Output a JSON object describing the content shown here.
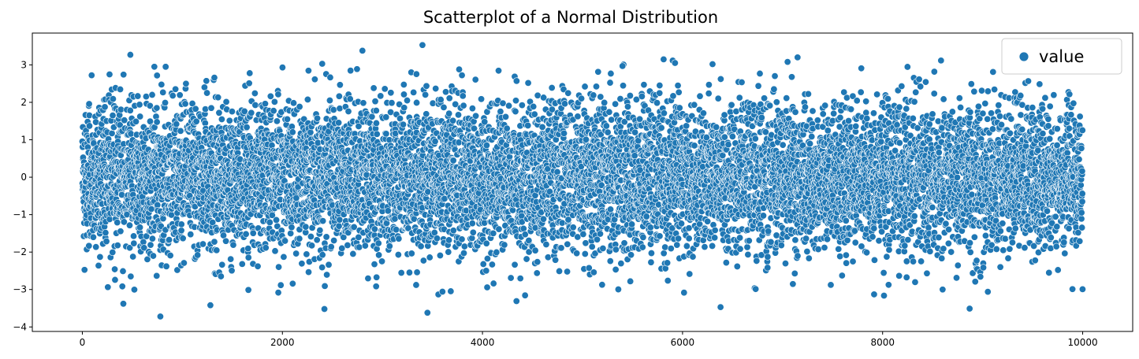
{
  "chart_data": {
    "type": "scatter",
    "title": "Scatterplot of a Normal Distribution",
    "xlabel": "",
    "ylabel": "",
    "xlim": [
      -500,
      10500
    ],
    "ylim": [
      -4.12,
      3.85
    ],
    "x_ticks": [
      0,
      2000,
      4000,
      6000,
      8000,
      10000
    ],
    "x_tick_labels": [
      "0",
      "2000",
      "4000",
      "6000",
      "8000",
      "10000"
    ],
    "y_ticks": [
      -4,
      -3,
      -2,
      -1,
      0,
      1,
      2,
      3
    ],
    "y_tick_labels": [
      "−4",
      "−3",
      "−2",
      "−1",
      "0",
      "1",
      "2",
      "3"
    ],
    "grid": false,
    "legend_position": "top-right",
    "series": [
      {
        "name": "value",
        "color": "#1f77b4",
        "n_points": 10000,
        "x_range": [
          0,
          9999
        ],
        "distribution": "standard normal",
        "mean": 0,
        "std": 1,
        "notable_points": [
          {
            "x": 3400,
            "y": 3.53
          },
          {
            "x": 2800,
            "y": 3.38
          },
          {
            "x": 480,
            "y": 3.27
          },
          {
            "x": 7150,
            "y": 3.2
          },
          {
            "x": 7050,
            "y": 3.08
          },
          {
            "x": 6300,
            "y": 3.02
          },
          {
            "x": 5400,
            "y": 2.97
          },
          {
            "x": 720,
            "y": 2.95
          },
          {
            "x": 1320,
            "y": 2.66
          },
          {
            "x": 780,
            "y": -3.72
          },
          {
            "x": 3450,
            "y": -3.62
          },
          {
            "x": 2420,
            "y": -3.52
          },
          {
            "x": 8870,
            "y": -3.51
          },
          {
            "x": 6380,
            "y": -3.47
          },
          {
            "x": 1280,
            "y": -3.42
          },
          {
            "x": 410,
            "y": -3.38
          },
          {
            "x": 4340,
            "y": -3.31
          },
          {
            "x": 8600,
            "y": -3.0
          }
        ]
      }
    ]
  }
}
